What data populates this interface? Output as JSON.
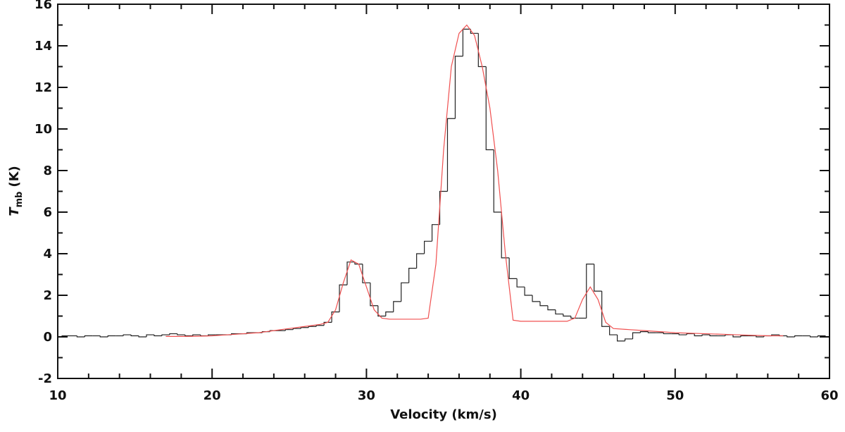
{
  "chart_data": {
    "type": "line",
    "xlabel": "Velocity (km/s)",
    "ylabel": {
      "main": "T",
      "sub": "mb",
      "unit": "(K)"
    },
    "xlim": [
      10,
      60
    ],
    "xticks": [
      10,
      20,
      30,
      40,
      50,
      60
    ],
    "xminorticks": [
      12,
      14,
      16,
      18,
      22,
      24,
      26,
      28,
      32,
      34,
      36,
      38,
      42,
      44,
      46,
      48,
      52,
      54,
      56,
      58
    ],
    "ylim": [
      -2,
      16
    ],
    "yticks": [
      -2,
      0,
      2,
      4,
      6,
      8,
      10,
      12,
      14,
      16
    ],
    "yminorticks": [
      -1,
      1,
      3,
      5,
      7,
      9,
      11,
      13,
      15
    ],
    "series": [
      {
        "color": "#222222",
        "step": true,
        "x": [
          10.5,
          11,
          11.5,
          12,
          12.5,
          13,
          13.5,
          14,
          14.5,
          15,
          15.5,
          16,
          16.5,
          17,
          17.5,
          18,
          18.5,
          19,
          19.5,
          20,
          20.5,
          21,
          21.5,
          22,
          22.5,
          23,
          23.5,
          24,
          24.5,
          25,
          25.5,
          26,
          26.5,
          27,
          27.5,
          28,
          28.5,
          29,
          29.5,
          30,
          30.5,
          31,
          31.5,
          32,
          32.5,
          33,
          33.5,
          34,
          34.5,
          35,
          35.5,
          36,
          36.5,
          37,
          37.5,
          38,
          38.5,
          39,
          39.5,
          40,
          40.5,
          41,
          41.5,
          42,
          42.5,
          43,
          43.5,
          44,
          44.5,
          45,
          45.5,
          46,
          46.5,
          47,
          47.5,
          48,
          48.5,
          49,
          49.5,
          50,
          50.5,
          51,
          51.5,
          52,
          52.5,
          53,
          53.5,
          54,
          54.5,
          55,
          55.5,
          56,
          56.5,
          57,
          57.5,
          58,
          58.5,
          59,
          59.5
        ],
        "values": [
          0.05,
          0.05,
          0.0,
          0.05,
          0.05,
          0.0,
          0.05,
          0.05,
          0.1,
          0.05,
          0.0,
          0.1,
          0.05,
          0.1,
          0.15,
          0.1,
          0.05,
          0.1,
          0.05,
          0.1,
          0.1,
          0.1,
          0.15,
          0.15,
          0.2,
          0.2,
          0.25,
          0.3,
          0.3,
          0.35,
          0.4,
          0.45,
          0.5,
          0.55,
          0.7,
          1.2,
          2.5,
          3.6,
          3.5,
          2.6,
          1.5,
          1.0,
          1.2,
          1.7,
          2.6,
          3.3,
          4.0,
          4.6,
          5.4,
          7.0,
          10.5,
          13.5,
          14.8,
          14.6,
          13.0,
          9.0,
          6.0,
          3.8,
          2.8,
          2.4,
          2.0,
          1.7,
          1.5,
          1.3,
          1.1,
          1.0,
          0.9,
          0.9,
          3.5,
          2.2,
          0.5,
          0.1,
          -0.2,
          -0.1,
          0.2,
          0.25,
          0.2,
          0.2,
          0.15,
          0.15,
          0.1,
          0.15,
          0.05,
          0.1,
          0.05,
          0.05,
          0.1,
          0.0,
          0.05,
          0.05,
          0.0,
          0.05,
          0.1,
          0.05,
          0.0,
          0.05,
          0.05,
          0.0,
          0.05
        ]
      },
      {
        "color": "#f05050",
        "x": [
          17,
          18,
          19,
          20,
          21,
          22,
          23,
          24,
          25,
          26,
          27,
          27.5,
          28,
          28.5,
          29,
          29.5,
          30,
          30.5,
          31,
          31.5,
          32,
          33,
          33.5,
          34,
          34.5,
          35,
          35.5,
          36,
          36.5,
          37,
          37.5,
          38,
          38.5,
          39,
          39.5,
          40,
          41,
          42,
          43,
          43.5,
          44,
          44.5,
          45,
          45.5,
          46,
          47,
          48,
          49,
          50,
          52,
          54,
          56,
          57
        ],
        "values": [
          0.02,
          0.02,
          0.03,
          0.05,
          0.1,
          0.15,
          0.2,
          0.3,
          0.4,
          0.5,
          0.6,
          0.7,
          1.3,
          2.6,
          3.7,
          3.5,
          2.4,
          1.3,
          0.9,
          0.85,
          0.85,
          0.85,
          0.85,
          0.9,
          3.5,
          9.0,
          13.0,
          14.6,
          15.0,
          14.5,
          13.0,
          11.0,
          8.0,
          4.0,
          0.8,
          0.75,
          0.75,
          0.75,
          0.75,
          0.9,
          1.8,
          2.4,
          1.8,
          0.7,
          0.4,
          0.35,
          0.3,
          0.25,
          0.2,
          0.15,
          0.1,
          0.05,
          0.05
        ]
      }
    ]
  }
}
